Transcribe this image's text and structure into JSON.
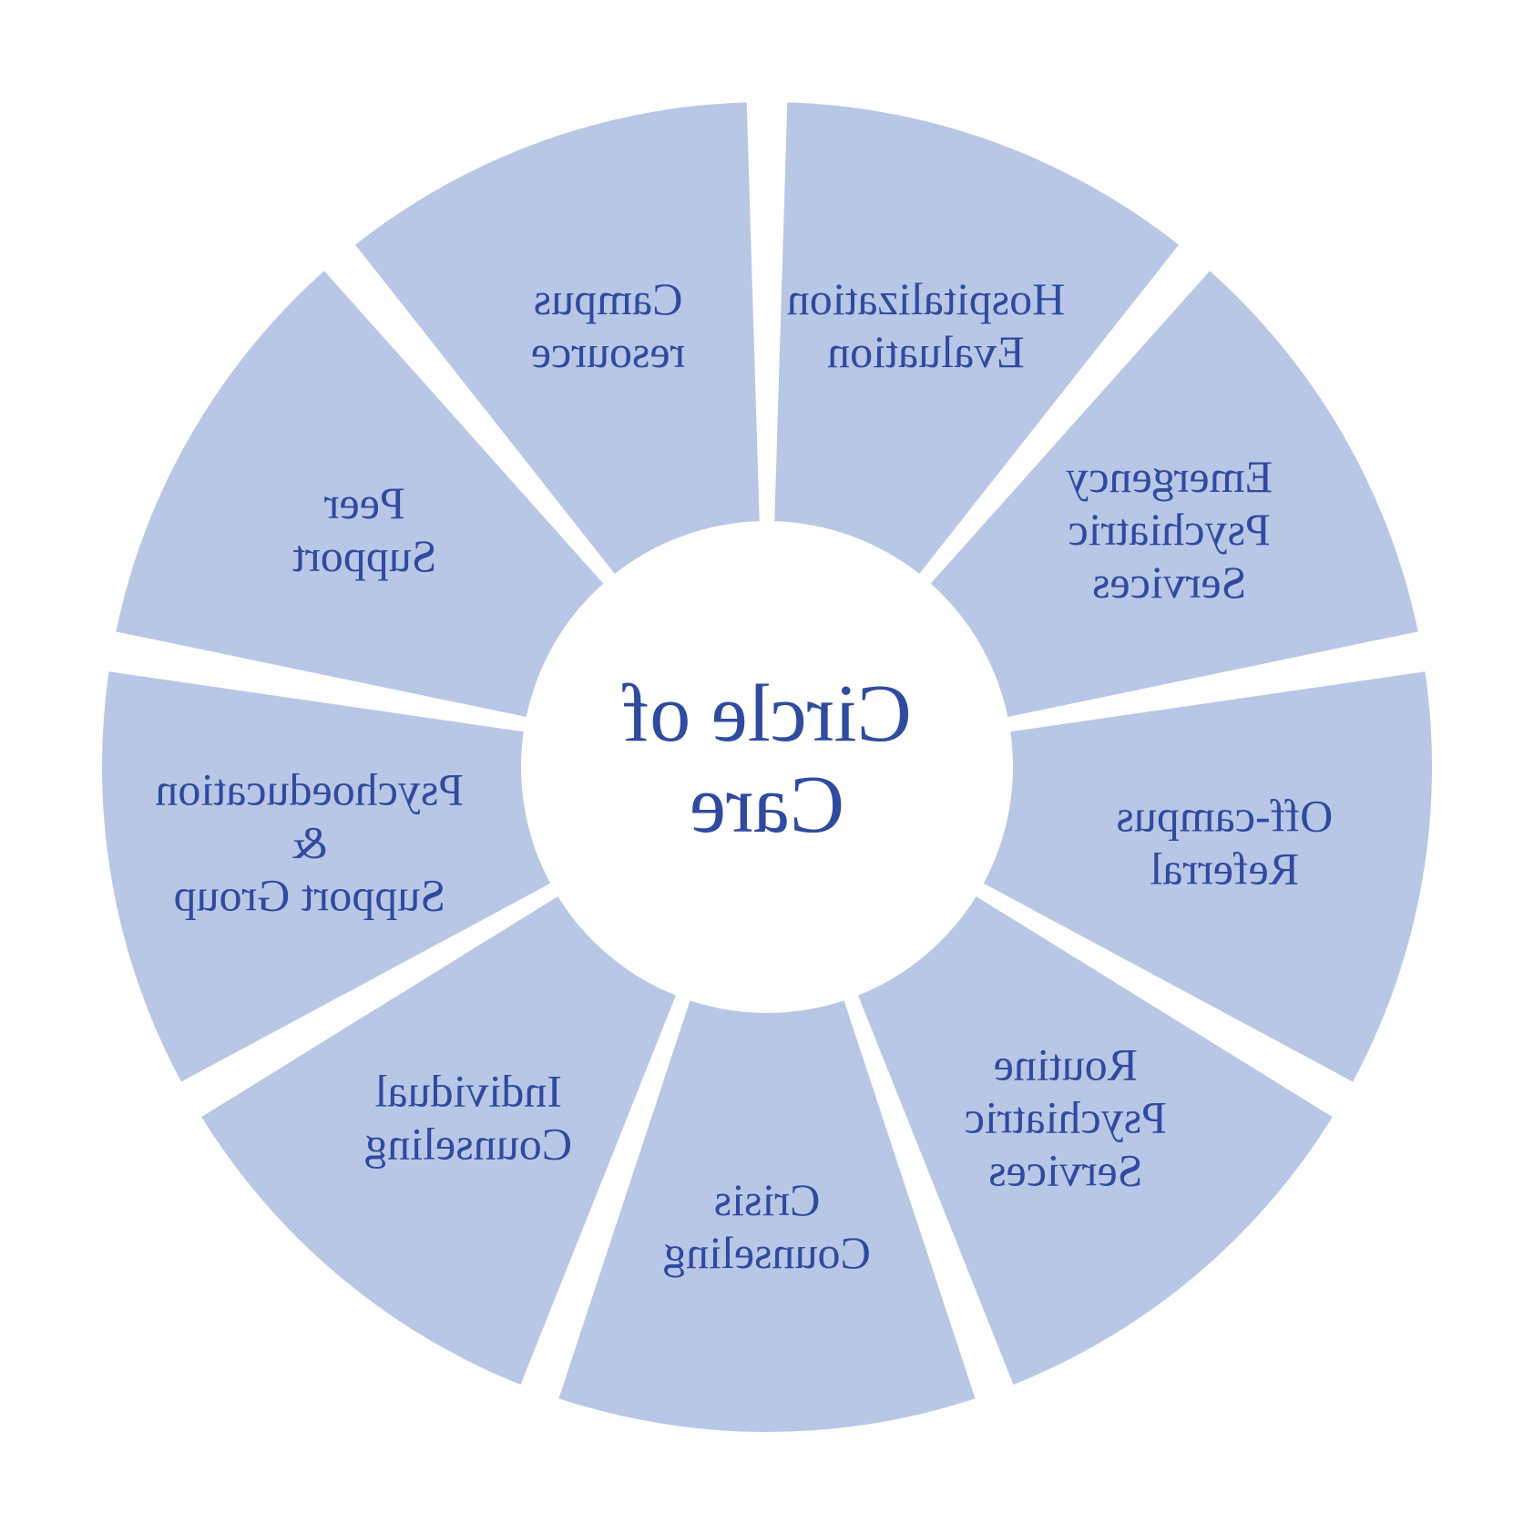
{
  "diagram": {
    "type": "radial-segmented-wheel",
    "center_label_lines": [
      "Circle of",
      "Care"
    ],
    "segments": [
      {
        "lines": [
          "Campus",
          "resource"
        ]
      },
      {
        "lines": [
          "Peer",
          "Support"
        ]
      },
      {
        "lines": [
          "Psychoeducation",
          "&",
          "Support Group"
        ]
      },
      {
        "lines": [
          "Individual",
          "Counseling"
        ]
      },
      {
        "lines": [
          "Crisis",
          "Counseling"
        ]
      },
      {
        "lines": [
          "Routine",
          "Psychiatric",
          "Services"
        ]
      },
      {
        "lines": [
          "Off-campus",
          "Referral"
        ]
      },
      {
        "lines": [
          "Emergency",
          "Psychiatric",
          "Services"
        ]
      },
      {
        "lines": [
          "Hospitalization",
          "Evaluation"
        ]
      }
    ],
    "style": {
      "canvas_size": 1684,
      "background_color": "#ffffff",
      "segment_fill": "#b9c7e6",
      "gap_color": "#ffffff",
      "text_color": "#2f4ba0",
      "center_fill": "#ffffff",
      "outer_radius": 730,
      "inner_radius": 270,
      "gap_deg": 3.5,
      "start_angle_deg": -90,
      "mirrored": true,
      "segment_label_fontsize": 50,
      "segment_label_line_height": 58,
      "center_label_fontsize": 90,
      "center_label_line_height": 100,
      "label_radius": 510
    }
  }
}
